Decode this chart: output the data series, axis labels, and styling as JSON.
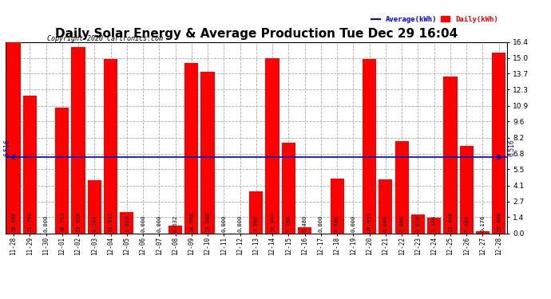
{
  "title": "Daily Solar Energy & Average Production Tue Dec 29 16:04",
  "copyright": "Copyright 2020 Cartronics.com",
  "categories": [
    "11-28",
    "11-29",
    "11-30",
    "12-01",
    "12-02",
    "12-03",
    "12-04",
    "12-05",
    "12-06",
    "12-07",
    "12-08",
    "12-09",
    "12-10",
    "12-11",
    "12-12",
    "12-13",
    "12-14",
    "12-15",
    "12-16",
    "12-17",
    "12-18",
    "12-19",
    "12-20",
    "12-21",
    "12-22",
    "12-23",
    "12-24",
    "12-25",
    "12-26",
    "12-27",
    "12-28"
  ],
  "values": [
    16.4,
    11.792,
    0.0,
    10.752,
    15.928,
    4.544,
    14.932,
    1.82,
    0.0,
    0.0,
    0.632,
    14.608,
    13.808,
    0.0,
    0.0,
    3.566,
    14.992,
    7.76,
    0.48,
    0.0,
    4.66,
    0.0,
    14.952,
    4.6,
    7.86,
    1.616,
    1.346,
    13.408,
    7.484,
    0.176,
    15.46
  ],
  "average": 6.516,
  "bar_color": "#ff0000",
  "average_line_color": "#0000bb",
  "background_color": "#ffffff",
  "plot_bg_color": "#ffffff",
  "grid_color": "#aaaaaa",
  "ylim": [
    0.0,
    16.4
  ],
  "yticks": [
    0.0,
    1.4,
    2.7,
    4.1,
    5.5,
    6.8,
    8.2,
    9.6,
    10.9,
    12.3,
    13.7,
    15.0,
    16.4
  ],
  "title_fontsize": 11,
  "avg_label_color": "#0000ff",
  "daily_label_color": "#ff0000",
  "legend_avg": "Average(kWh)",
  "legend_daily": "Daily(kWh)",
  "avg_text": "6.516",
  "bar_label_fontsize": 5.0,
  "xtick_fontsize": 5.5,
  "ytick_fontsize": 6.5,
  "copyright_fontsize": 6.0
}
